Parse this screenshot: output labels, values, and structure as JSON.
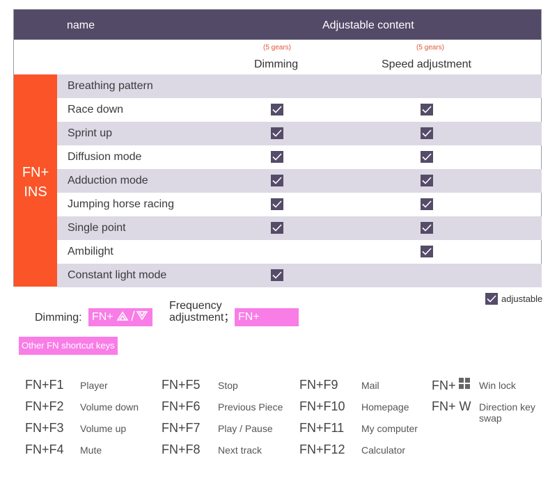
{
  "header": {
    "name": "name",
    "adjustable_content": "Adjustable content"
  },
  "columns": [
    {
      "gears": "(5 gears)",
      "label": "Dimming"
    },
    {
      "gears": "(5 gears)",
      "label": "Speed adjustment"
    }
  ],
  "fn_key": {
    "line1": "FN+",
    "line2": "INS"
  },
  "modes": [
    {
      "label": "Breathing pattern",
      "dimming": false,
      "speed": false
    },
    {
      "label": "Race down",
      "dimming": true,
      "speed": true
    },
    {
      "label": "Sprint up",
      "dimming": true,
      "speed": true
    },
    {
      "label": "Diffusion mode",
      "dimming": true,
      "speed": true
    },
    {
      "label": "Adduction mode",
      "dimming": true,
      "speed": true
    },
    {
      "label": "Jumping horse racing",
      "dimming": true,
      "speed": true
    },
    {
      "label": "Single point",
      "dimming": true,
      "speed": true
    },
    {
      "label": "Ambilight",
      "dimming": false,
      "speed": true
    },
    {
      "label": "Constant light mode",
      "dimming": true,
      "speed": false
    }
  ],
  "legend": {
    "label": "adjustable"
  },
  "dimming_shortcut": {
    "label": "Dimming:",
    "keys": "FN+",
    "icons": "up-down-arrows-icon"
  },
  "frequency_shortcut": {
    "label_line1": "Frequency",
    "label_line2": "adjustment；",
    "keys": "FN+",
    "icons": "left-right-arrows-icon"
  },
  "other_fn": {
    "label": "Other FN shortcut keys"
  },
  "shortcuts": [
    {
      "key": "FN+F1",
      "desc": "Player"
    },
    {
      "key": "FN+F2",
      "desc": "Volume down"
    },
    {
      "key": "FN+F3",
      "desc": "Volume up"
    },
    {
      "key": "FN+F4",
      "desc": "Mute"
    },
    {
      "key": "FN+F5",
      "desc": "Stop"
    },
    {
      "key": "FN+F6",
      "desc": "Previous Piece"
    },
    {
      "key": "FN+F7",
      "desc": "Play / Pause"
    },
    {
      "key": "FN+F8",
      "desc": "Next track"
    },
    {
      "key": "FN+F9",
      "desc": "Mail"
    },
    {
      "key": "FN+F10",
      "desc": "Homepage"
    },
    {
      "key": "FN+F11",
      "desc": "My computer"
    },
    {
      "key": "FN+F12",
      "desc": "Calculator"
    },
    {
      "key": "FN+",
      "desc": "Win lock",
      "icon": "windows-icon"
    },
    {
      "key": "FN+ W",
      "desc": "Direction key swap"
    }
  ],
  "colors": {
    "header": "#534a68",
    "fn_block": "#fb5428",
    "row_alt": "#dcd9e5",
    "checkbox": "#544c68",
    "pink": "#f97de6",
    "gears_text": "#e0563a"
  }
}
